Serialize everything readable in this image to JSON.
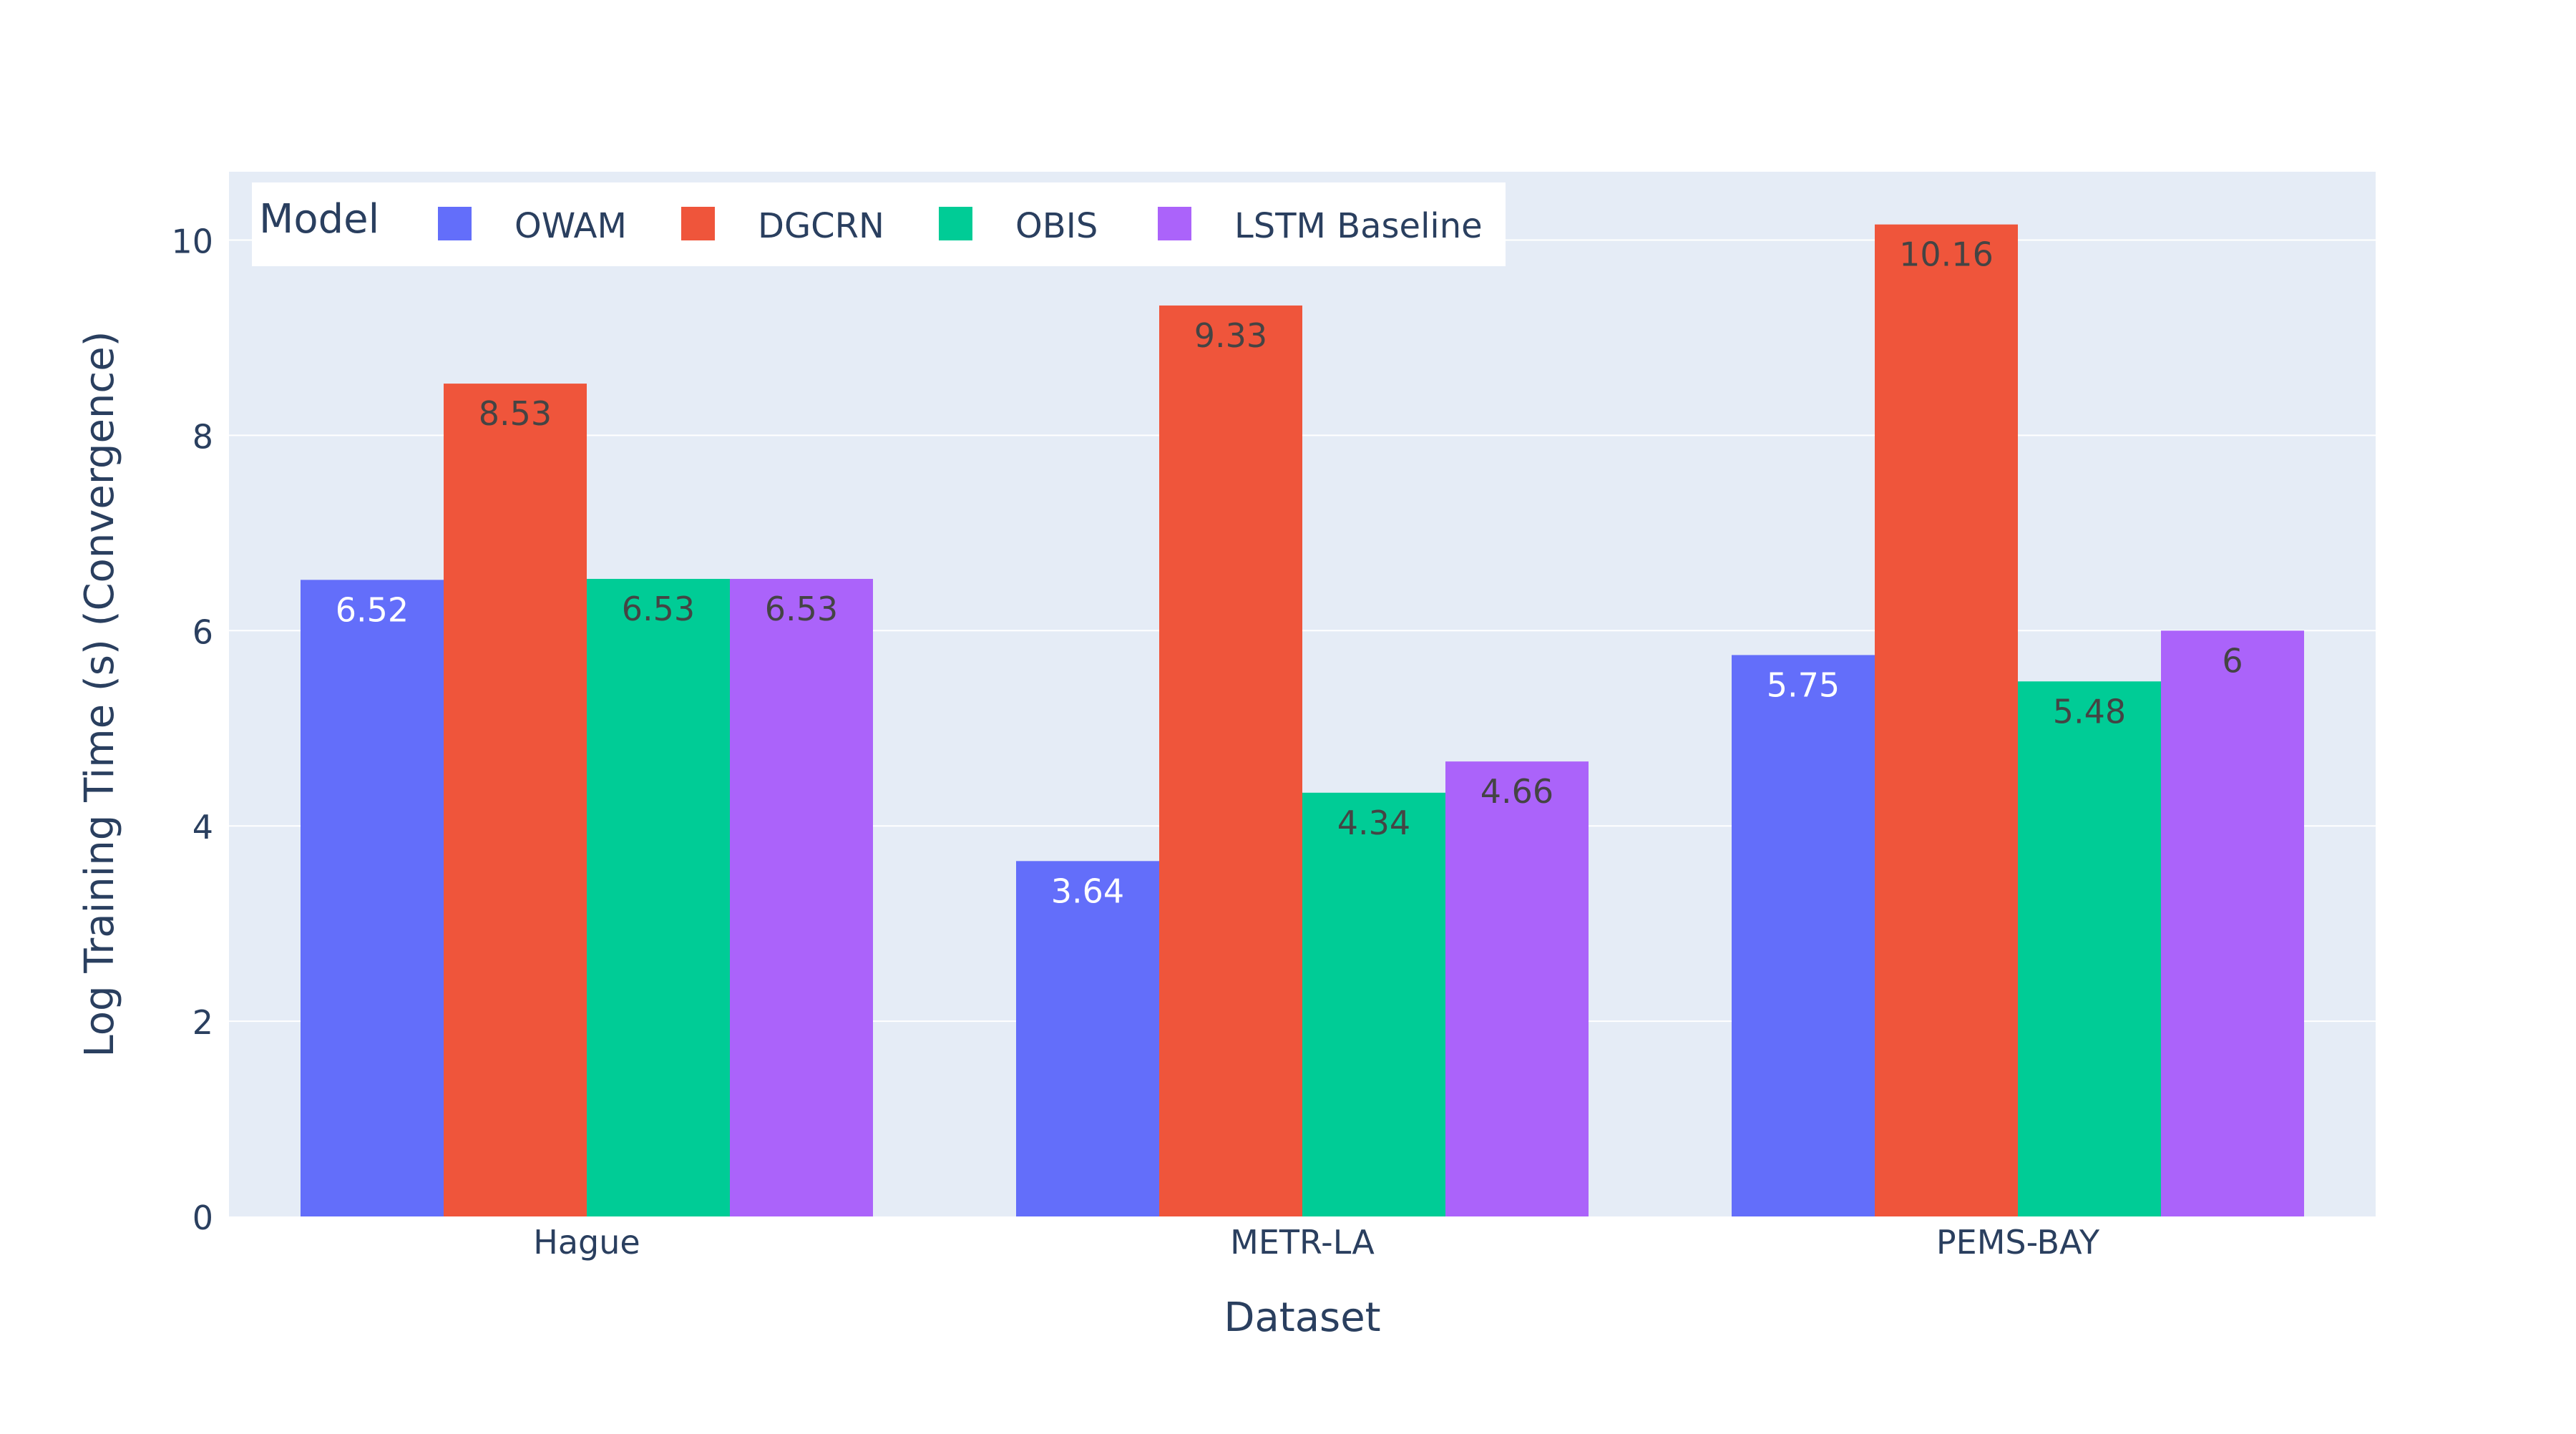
{
  "chart_data": {
    "type": "bar",
    "categories": [
      "Hague",
      "METR-LA",
      "PEMS-BAY"
    ],
    "series": [
      {
        "name": "OWAM",
        "values": [
          6.52,
          3.64,
          5.75
        ],
        "labels": [
          "6.52",
          "3.64",
          "5.75"
        ],
        "color": "#636efa",
        "label_color": "#ffffff"
      },
      {
        "name": "DGCRN",
        "values": [
          8.53,
          9.33,
          10.16
        ],
        "labels": [
          "8.53",
          "9.33",
          "10.16"
        ],
        "color": "#ef553b",
        "label_color": "#444444"
      },
      {
        "name": "OBIS",
        "values": [
          6.53,
          4.34,
          5.48
        ],
        "labels": [
          "6.53",
          "4.34",
          "5.48"
        ],
        "color": "#00cc96",
        "label_color": "#444444"
      },
      {
        "name": "LSTM Baseline",
        "values": [
          6.53,
          4.66,
          6.0
        ],
        "labels": [
          "6.53",
          "4.66",
          "6"
        ],
        "color": "#ab63fa",
        "label_color": "#444444"
      }
    ],
    "xlabel": "Dataset",
    "ylabel": "Log Training Time (s) (Convergence)",
    "ylim": [
      0,
      10.7
    ],
    "yticks": [
      0,
      2,
      4,
      6,
      8,
      10
    ],
    "legend_title": "Model",
    "legend_position": "top-left",
    "grid": true,
    "plot_background": "#e5ecf6",
    "axis_text_color": "#2a3f5f"
  }
}
